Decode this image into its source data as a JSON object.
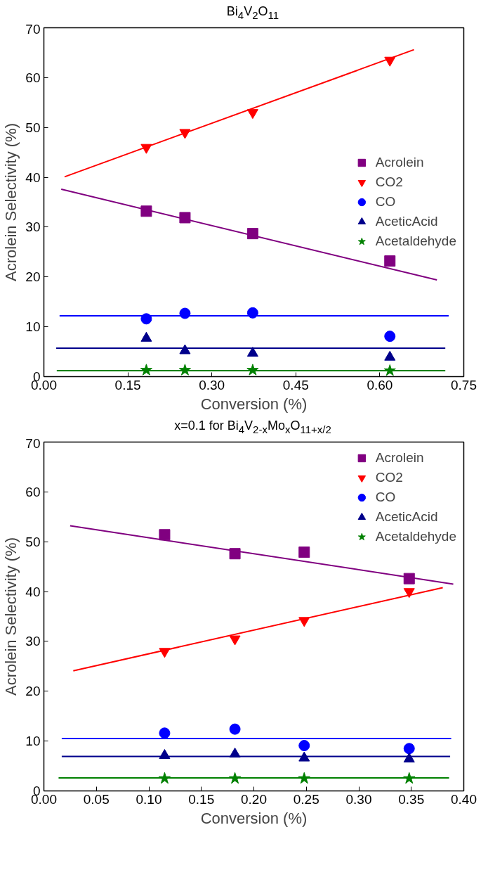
{
  "chart_data": [
    {
      "type": "scatter",
      "title": "Bi$_{4}$V$_{2}$O$_{11}$",
      "xlabel": "Conversion (%)",
      "ylabel": "Acrolein Selectivity (%)",
      "xlim": [
        0,
        0.75
      ],
      "ylim": [
        0,
        70
      ],
      "xticks": [
        {
          "value": 0,
          "label": "0.00"
        },
        0.15,
        {
          "value": 0.3,
          "label": "0.30"
        },
        0.45,
        {
          "value": 0.6,
          "label": "0.60"
        },
        0.75
      ],
      "yticks": [
        0,
        10,
        20,
        30,
        40,
        50,
        60,
        70
      ],
      "grid": false,
      "legend": "right",
      "series": [
        {
          "name": "Acrolein",
          "color": "#800080",
          "marker": "square",
          "x": [
            0.183,
            0.252,
            0.373,
            0.618
          ],
          "values": [
            33.2,
            31.9,
            28.7,
            23.2
          ]
        },
        {
          "name": "CO2",
          "color": "#ff0000",
          "marker": "triangle-down",
          "x": [
            0.183,
            0.252,
            0.373,
            0.618
          ],
          "values": [
            46,
            49,
            53,
            63.5
          ]
        },
        {
          "name": "CO",
          "color": "#0000ff",
          "marker": "circle",
          "x": [
            0.183,
            0.252,
            0.373,
            0.618
          ],
          "values": [
            11.6,
            12.7,
            12.8,
            8.1
          ]
        },
        {
          "name": "AceticAcid",
          "color": "#00008b",
          "marker": "triangle",
          "x": [
            0.183,
            0.252,
            0.373,
            0.618
          ],
          "values": [
            7.7,
            5.2,
            4.7,
            3.9
          ]
        },
        {
          "name": "Acetaldehyde",
          "color": "#008000",
          "marker": "star",
          "x": [
            0.183,
            0.252,
            0.373,
            0.618
          ],
          "values": [
            1.3,
            1.3,
            1.3,
            1.2
          ]
        },
        {
          "type": "line",
          "color": "#800080",
          "x": [
            0.031,
            0.702
          ],
          "values": [
            37.6,
            19.4
          ]
        },
        {
          "type": "line",
          "color": "#ff0000",
          "x": [
            0.037,
            0.661
          ],
          "values": [
            40.1,
            65.6
          ]
        },
        {
          "type": "line",
          "color": "#0000ff",
          "x": [
            0.028,
            0.723
          ],
          "values": [
            12.2,
            12.2
          ]
        },
        {
          "type": "line",
          "color": "#00008b",
          "x": [
            0.022,
            0.717
          ],
          "values": [
            5.7,
            5.7
          ]
        },
        {
          "type": "line",
          "color": "#008000",
          "x": [
            0.023,
            0.717
          ],
          "values": [
            1.2,
            1.2
          ]
        }
      ]
    },
    {
      "type": "scatter",
      "title": "x=0.1 for Bi$_{4}$V$_{2-x}$Mo$_{x}$O$_{11+x/2}$",
      "xlabel": "Conversion (%)",
      "ylabel": "Acrolein Selectivity (%)",
      "xlim": [
        0,
        0.4
      ],
      "ylim": [
        0,
        70
      ],
      "xticks": [
        {
          "value": 0,
          "label": "0.00"
        },
        0.05,
        {
          "value": 0.1,
          "label": "0.10"
        },
        0.15,
        {
          "value": 0.2,
          "label": "0.20"
        },
        0.25,
        {
          "value": 0.3,
          "label": "0.30"
        },
        0.35,
        {
          "value": 0.4,
          "label": "0.40"
        }
      ],
      "yticks": [
        0,
        10,
        20,
        30,
        40,
        50,
        60,
        70
      ],
      "grid": false,
      "legend": "top right",
      "series": [
        {
          "name": "Acrolein",
          "color": "#800080",
          "marker": "square",
          "x": [
            0.115,
            0.182,
            0.248,
            0.348
          ],
          "values": [
            51.4,
            47.6,
            47.9,
            42.6
          ]
        },
        {
          "name": "CO2",
          "color": "#ff0000",
          "marker": "triangle-down",
          "x": [
            0.115,
            0.182,
            0.248,
            0.348
          ],
          "values": [
            28,
            30.5,
            34.2,
            40
          ]
        },
        {
          "name": "CO",
          "color": "#0000ff",
          "marker": "circle",
          "x": [
            0.115,
            0.182,
            0.248,
            0.348
          ],
          "values": [
            11.6,
            12.4,
            9.1,
            8.5
          ]
        },
        {
          "name": "AceticAcid",
          "color": "#00008b",
          "marker": "triangle",
          "x": [
            0.115,
            0.182,
            0.248,
            0.348
          ],
          "values": [
            7.1,
            7.4,
            6.6,
            6.4
          ]
        },
        {
          "name": "Acetaldehyde",
          "color": "#008000",
          "marker": "star",
          "x": [
            0.115,
            0.182,
            0.248,
            0.348
          ],
          "values": [
            2.5,
            2.5,
            2.5,
            2.5
          ]
        },
        {
          "type": "line",
          "color": "#800080",
          "x": [
            0.025,
            0.39
          ],
          "values": [
            53.2,
            41.5
          ]
        },
        {
          "type": "line",
          "color": "#ff0000",
          "x": [
            0.028,
            0.38
          ],
          "values": [
            24.1,
            40.8
          ]
        },
        {
          "type": "line",
          "color": "#0000ff",
          "x": [
            0.017,
            0.388
          ],
          "values": [
            10.5,
            10.5
          ]
        },
        {
          "type": "line",
          "color": "#00008b",
          "x": [
            0.017,
            0.387
          ],
          "values": [
            6.9,
            6.9
          ]
        },
        {
          "type": "line",
          "color": "#008000",
          "x": [
            0.014,
            0.386
          ],
          "values": [
            2.6,
            2.6
          ]
        }
      ]
    }
  ]
}
